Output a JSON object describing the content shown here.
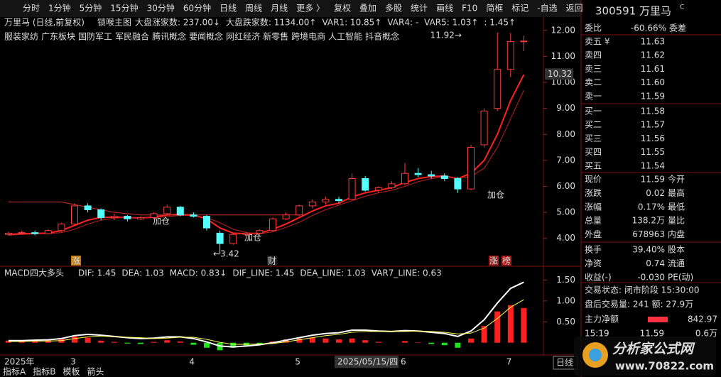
{
  "toolbar": {
    "left": [
      "分时",
      "1分钟",
      "5分钟",
      "15分钟",
      "30分钟",
      "60分钟",
      "日线",
      "周线",
      "月线",
      "更多 〉"
    ],
    "right": [
      "复权",
      "叠加",
      "多股",
      "统计",
      "画线",
      "F10",
      "简框",
      "标记",
      "-自选",
      "返回"
    ],
    "active_index": 6
  },
  "chart_data": {
    "type": "candlestick",
    "title": "万里马 (日线,前复权)",
    "subtitle": "锁喉主图",
    "indicators": [
      {
        "text": "大盘涨家数: 237.00↓",
        "color": "#ffff54"
      },
      {
        "text": "大盘跌家数: 1134.00↑",
        "color": "#54ff54"
      },
      {
        "text": "VAR1: 10.85↑",
        "color": "#ff5454"
      },
      {
        "text": "VAR4: -",
        "color": "#54ffff"
      },
      {
        "text": "VAR5: 1.03↑",
        "color": "#ff5454"
      },
      {
        "text": ": 1.45↑",
        "color": "#ff5454"
      }
    ],
    "concepts": [
      "服装家纺",
      "广东板块",
      "国防军工",
      "军民融合",
      "腾讯概念",
      "要闻概念",
      "网红经济",
      "新零售",
      "跨境电商",
      "人工智能",
      "抖音概念"
    ],
    "categories": [
      "2025年",
      null,
      null,
      null,
      null,
      "3",
      null,
      null,
      null,
      null,
      null,
      null,
      null,
      null,
      "4",
      null,
      null,
      null,
      null,
      null,
      null,
      null,
      "5",
      null,
      null,
      null,
      null,
      null,
      null,
      null,
      "6",
      null,
      null,
      null,
      null,
      null,
      null,
      null,
      "7",
      null
    ],
    "open": [
      4.15,
      4.2,
      4.22,
      4.18,
      4.3,
      4.55,
      5.25,
      5.1,
      4.8,
      4.85,
      4.75,
      4.8,
      4.95,
      5.2,
      4.9,
      4.85,
      4.2,
      3.8,
      4.15,
      4.2,
      4.3,
      4.75,
      4.9,
      5.25,
      5.4,
      5.5,
      5.5,
      6.3,
      5.85,
      5.95,
      6.1,
      6.5,
      6.45,
      6.4,
      6.3,
      5.9,
      7.6,
      9.0,
      10.5,
      11.57
    ],
    "high": [
      4.25,
      4.3,
      4.3,
      4.35,
      4.6,
      5.35,
      5.35,
      5.15,
      4.95,
      4.9,
      4.85,
      5.0,
      5.3,
      5.25,
      5.0,
      4.9,
      4.3,
      4.2,
      4.25,
      4.35,
      4.8,
      5.0,
      5.3,
      5.5,
      5.6,
      5.6,
      6.5,
      6.4,
      6.0,
      6.2,
      6.9,
      6.7,
      6.6,
      6.5,
      6.35,
      7.6,
      9.0,
      11.92,
      11.9,
      11.8
    ],
    "low": [
      4.1,
      4.15,
      4.12,
      4.15,
      4.25,
      4.5,
      5.0,
      4.7,
      4.7,
      4.65,
      4.7,
      4.75,
      4.9,
      4.85,
      4.8,
      4.3,
      3.42,
      3.75,
      4.05,
      4.1,
      4.25,
      4.7,
      4.85,
      5.15,
      5.3,
      5.35,
      5.5,
      5.8,
      5.75,
      5.9,
      6.05,
      6.35,
      6.3,
      6.2,
      5.75,
      5.85,
      7.5,
      8.9,
      10.2,
      11.2
    ],
    "close": [
      4.2,
      4.22,
      4.18,
      4.3,
      4.55,
      5.25,
      5.1,
      4.8,
      4.85,
      4.75,
      4.8,
      4.95,
      5.2,
      4.9,
      4.85,
      4.4,
      3.8,
      4.15,
      4.2,
      4.3,
      4.75,
      4.9,
      5.25,
      5.4,
      5.5,
      5.45,
      6.3,
      5.85,
      5.95,
      6.1,
      6.5,
      6.45,
      6.4,
      6.3,
      5.9,
      7.5,
      8.9,
      10.5,
      11.57,
      11.59
    ],
    "up_color": "#ff3c3c",
    "down_color": "#54ffff",
    "lines": [
      {
        "color": "#ff2020",
        "values": [
          4.15,
          4.18,
          4.19,
          4.2,
          4.3,
          4.5,
          4.7,
          4.8,
          4.82,
          4.8,
          4.78,
          4.82,
          4.9,
          4.92,
          4.9,
          4.75,
          4.4,
          4.2,
          4.18,
          4.2,
          4.35,
          4.55,
          4.8,
          5.05,
          5.25,
          5.35,
          5.6,
          5.75,
          5.85,
          5.95,
          6.15,
          6.3,
          6.38,
          6.4,
          6.3,
          6.5,
          7.0,
          8.0,
          9.3,
          10.3
        ]
      },
      {
        "color": "#c02020",
        "values": [
          4.12,
          4.15,
          4.17,
          4.18,
          4.22,
          4.35,
          4.55,
          4.7,
          4.78,
          4.8,
          4.78,
          4.79,
          4.84,
          4.88,
          4.88,
          4.8,
          4.6,
          4.35,
          4.22,
          4.18,
          4.25,
          4.42,
          4.62,
          4.88,
          5.1,
          5.28,
          5.45,
          5.62,
          5.75,
          5.85,
          6.0,
          6.18,
          6.3,
          6.36,
          6.32,
          6.38,
          6.7,
          7.5,
          8.6,
          9.7
        ]
      },
      {
        "color": "#d03030",
        "values": [
          5.4,
          5.4,
          5.4,
          5.4,
          5.4,
          5.3,
          5.2,
          5.1,
          5.0,
          4.95,
          4.9,
          4.9,
          4.9,
          4.9,
          4.9,
          4.9,
          4.9,
          4.9,
          4.9,
          4.9,
          4.9,
          4.9,
          4.9,
          null,
          null,
          null,
          null,
          null,
          null,
          null,
          null,
          null,
          null,
          null,
          null,
          null,
          null,
          null,
          null,
          null
        ]
      }
    ],
    "ylim": [
      3.2,
      12.35
    ],
    "yticks": [
      {
        "value": 4,
        "label": "4.00"
      },
      {
        "value": 5,
        "label": "5.00"
      },
      {
        "value": 6,
        "label": "6.00"
      },
      {
        "value": 7,
        "label": "7.00"
      },
      {
        "value": 8,
        "label": "8.00"
      },
      {
        "value": 9,
        "label": "9.00"
      },
      {
        "value": 10,
        "label": "10.00"
      },
      {
        "value": 11,
        "label": "11.00"
      },
      {
        "value": 12,
        "label": "12.00"
      }
    ],
    "cursor_price": {
      "value": 10.32,
      "label": "10.32"
    },
    "high_label": "11.92→",
    "low_label": "←3.42",
    "add_label": "加仓",
    "markers": [
      "涨",
      "财",
      "涨",
      "榜"
    ],
    "crosshair_date": "2025/05/15/四"
  },
  "macd": {
    "type": "bar",
    "title": "MACD四大多头",
    "items": [
      {
        "text": "DIF: 1.45",
        "color": "#ffffff"
      },
      {
        "text": "DEA: 1.03",
        "color": "#ffff54"
      },
      {
        "text": "MACD: 0.83↓",
        "color": "#ff54ff"
      },
      {
        "text": "DIF_LINE: 1.45",
        "color": "#ffffff"
      },
      {
        "text": "DEA_LINE: 1.03",
        "color": "#ffff54"
      },
      {
        "text": "VAR7_LINE: 0.63",
        "color": "#54ffff"
      }
    ],
    "values": [
      0.05,
      0.05,
      0.04,
      0.06,
      0.1,
      0.15,
      0.12,
      0.05,
      0.02,
      -0.02,
      -0.03,
      0.02,
      0.06,
      0.03,
      -0.05,
      -0.12,
      -0.18,
      -0.12,
      -0.08,
      -0.04,
      0.03,
      0.08,
      0.1,
      0.12,
      0.1,
      0.08,
      0.1,
      0.06,
      0.02,
      0.0,
      0.04,
      0.01,
      -0.03,
      -0.06,
      -0.12,
      0.1,
      0.4,
      0.75,
      0.9,
      0.83
    ],
    "dif": [
      0.05,
      0.05,
      0.06,
      0.07,
      0.1,
      0.17,
      0.2,
      0.18,
      0.15,
      0.12,
      0.1,
      0.11,
      0.14,
      0.14,
      0.1,
      0.02,
      -0.08,
      -0.1,
      -0.08,
      -0.05,
      0.0,
      0.06,
      0.12,
      0.18,
      0.22,
      0.24,
      0.3,
      0.3,
      0.28,
      0.27,
      0.29,
      0.28,
      0.25,
      0.22,
      0.15,
      0.28,
      0.55,
      0.95,
      1.3,
      1.45
    ],
    "dea": [
      0.03,
      0.03,
      0.04,
      0.04,
      0.05,
      0.1,
      0.14,
      0.16,
      0.14,
      0.13,
      0.12,
      0.1,
      0.11,
      0.13,
      0.13,
      0.08,
      0.01,
      -0.04,
      -0.04,
      -0.03,
      -0.02,
      0.02,
      0.07,
      0.12,
      0.17,
      0.2,
      0.25,
      0.27,
      0.27,
      0.27,
      0.27,
      0.28,
      0.27,
      0.25,
      0.21,
      0.23,
      0.35,
      0.58,
      0.85,
      1.03
    ],
    "up_color": "#ff2020",
    "down_color": "#20e020",
    "ylim": [
      -0.26,
      1.78
    ],
    "yticks": [
      {
        "value": 0.5,
        "label": "0.50"
      },
      {
        "value": 1,
        "label": "1.00"
      },
      {
        "value": 1.5,
        "label": "1.50"
      }
    ]
  },
  "bottom_tabs": [
    "指标A",
    "指标B",
    "模板",
    "箭头"
  ],
  "period_tag": "日线",
  "quote": {
    "code": "300591",
    "name": "万里马",
    "flag": "C",
    "ratio_label": "委比",
    "ratio": "-60.66%",
    "diff_label": "委差",
    "book": [
      [
        "卖五 ¥",
        "11.63",
        "#ff4040"
      ],
      [
        "卖四",
        "11.62",
        "#ff4040"
      ],
      [
        "卖三",
        "11.61",
        "#ff4040"
      ],
      [
        "卖二",
        "11.60",
        "#ff4040"
      ],
      [
        "卖一",
        "11.59",
        "#ff4040"
      ],
      [
        "买一",
        "11.58",
        "#ff4040"
      ],
      [
        "买二",
        "11.57",
        "#e0e0e0"
      ],
      [
        "买三",
        "11.56",
        "#40e040"
      ],
      [
        "买四",
        "11.55",
        "#40e040"
      ],
      [
        "买五",
        "11.54",
        "#40e040"
      ]
    ],
    "stats": [
      [
        "现价",
        "11.59",
        "今开",
        "#ff4040"
      ],
      [
        "涨跌",
        "0.02",
        "最高",
        "#ff4040"
      ],
      [
        "涨幅",
        "0.17%",
        "最低",
        "#ff4040"
      ],
      [
        "总量",
        "138.2万",
        "量比",
        "#ffff40"
      ],
      [
        "外盘",
        "678963",
        "内盘",
        "#ff4040"
      ],
      [
        "换手",
        "39.40%",
        "股本",
        "#e0e0e0"
      ],
      [
        "净资",
        "0.74",
        "流通",
        "#e0e0e0"
      ],
      [
        "收益(-)",
        "-0.030",
        "PE(动)",
        "#e0e0e0"
      ]
    ],
    "status": "交易状态: 闭市阶段 15:30:00",
    "after": "盘后交易量: 241  额: 27.9万",
    "net_label": "主力净额",
    "net": "842.97",
    "tick": [
      "15:19",
      "11.59",
      "0.6万"
    ]
  },
  "watermark": {
    "title": "分析家公式网",
    "url": "www.70822.com"
  }
}
